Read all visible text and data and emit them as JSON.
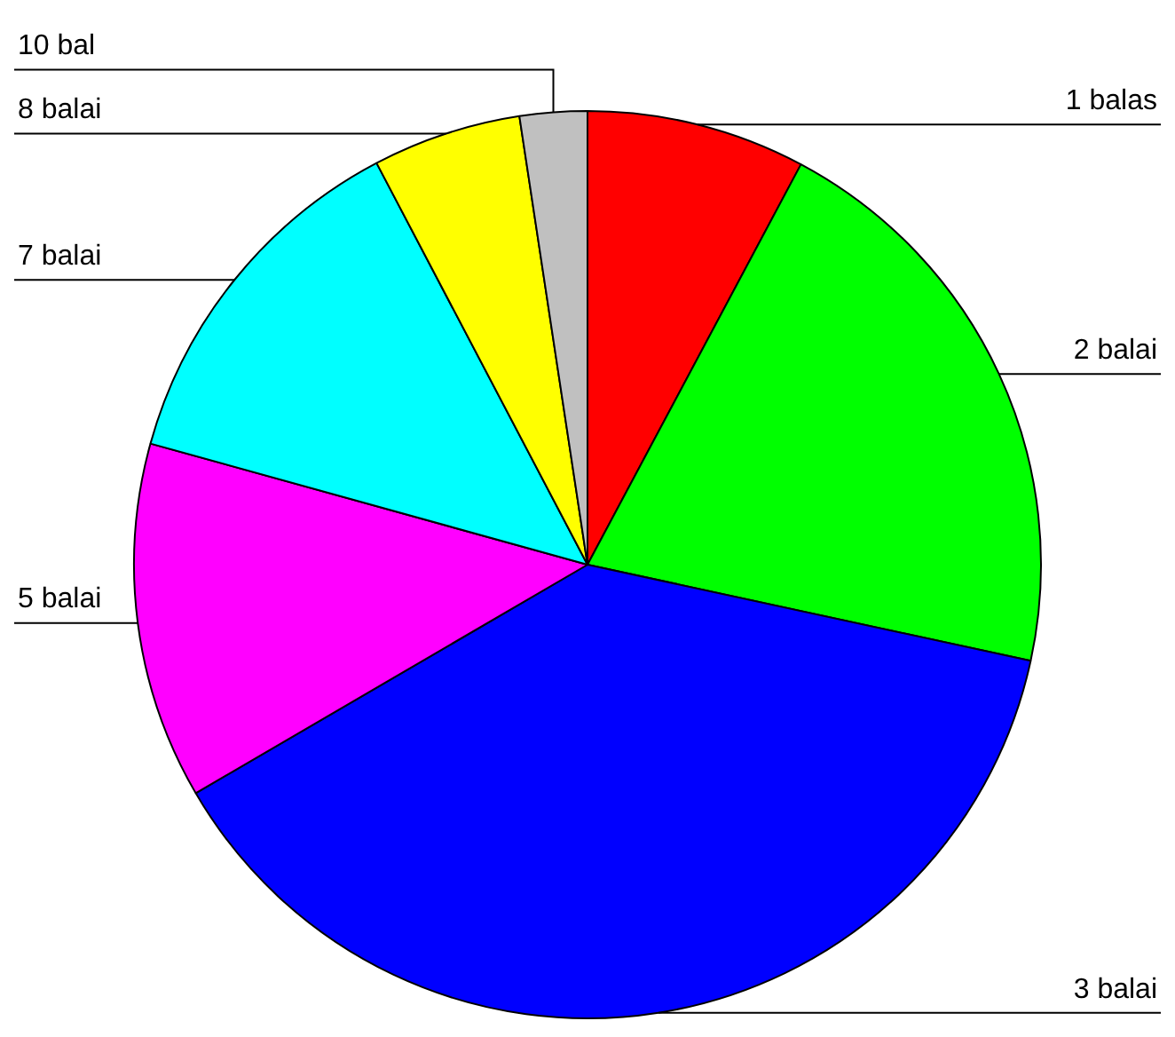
{
  "chart_data": {
    "type": "pie",
    "categories": [
      "1 balas",
      "2 balai",
      "3 balai",
      "5 balai",
      "7 balai",
      "8 balai",
      "10 bal"
    ],
    "values": [
      7.8,
      20.6,
      38.2,
      12.7,
      13.0,
      5.3,
      2.4
    ],
    "colors": [
      "#ff0000",
      "#00ff00",
      "#0000ff",
      "#ff00ff",
      "#00ffff",
      "#ffff00",
      "#c0c0c0"
    ]
  }
}
